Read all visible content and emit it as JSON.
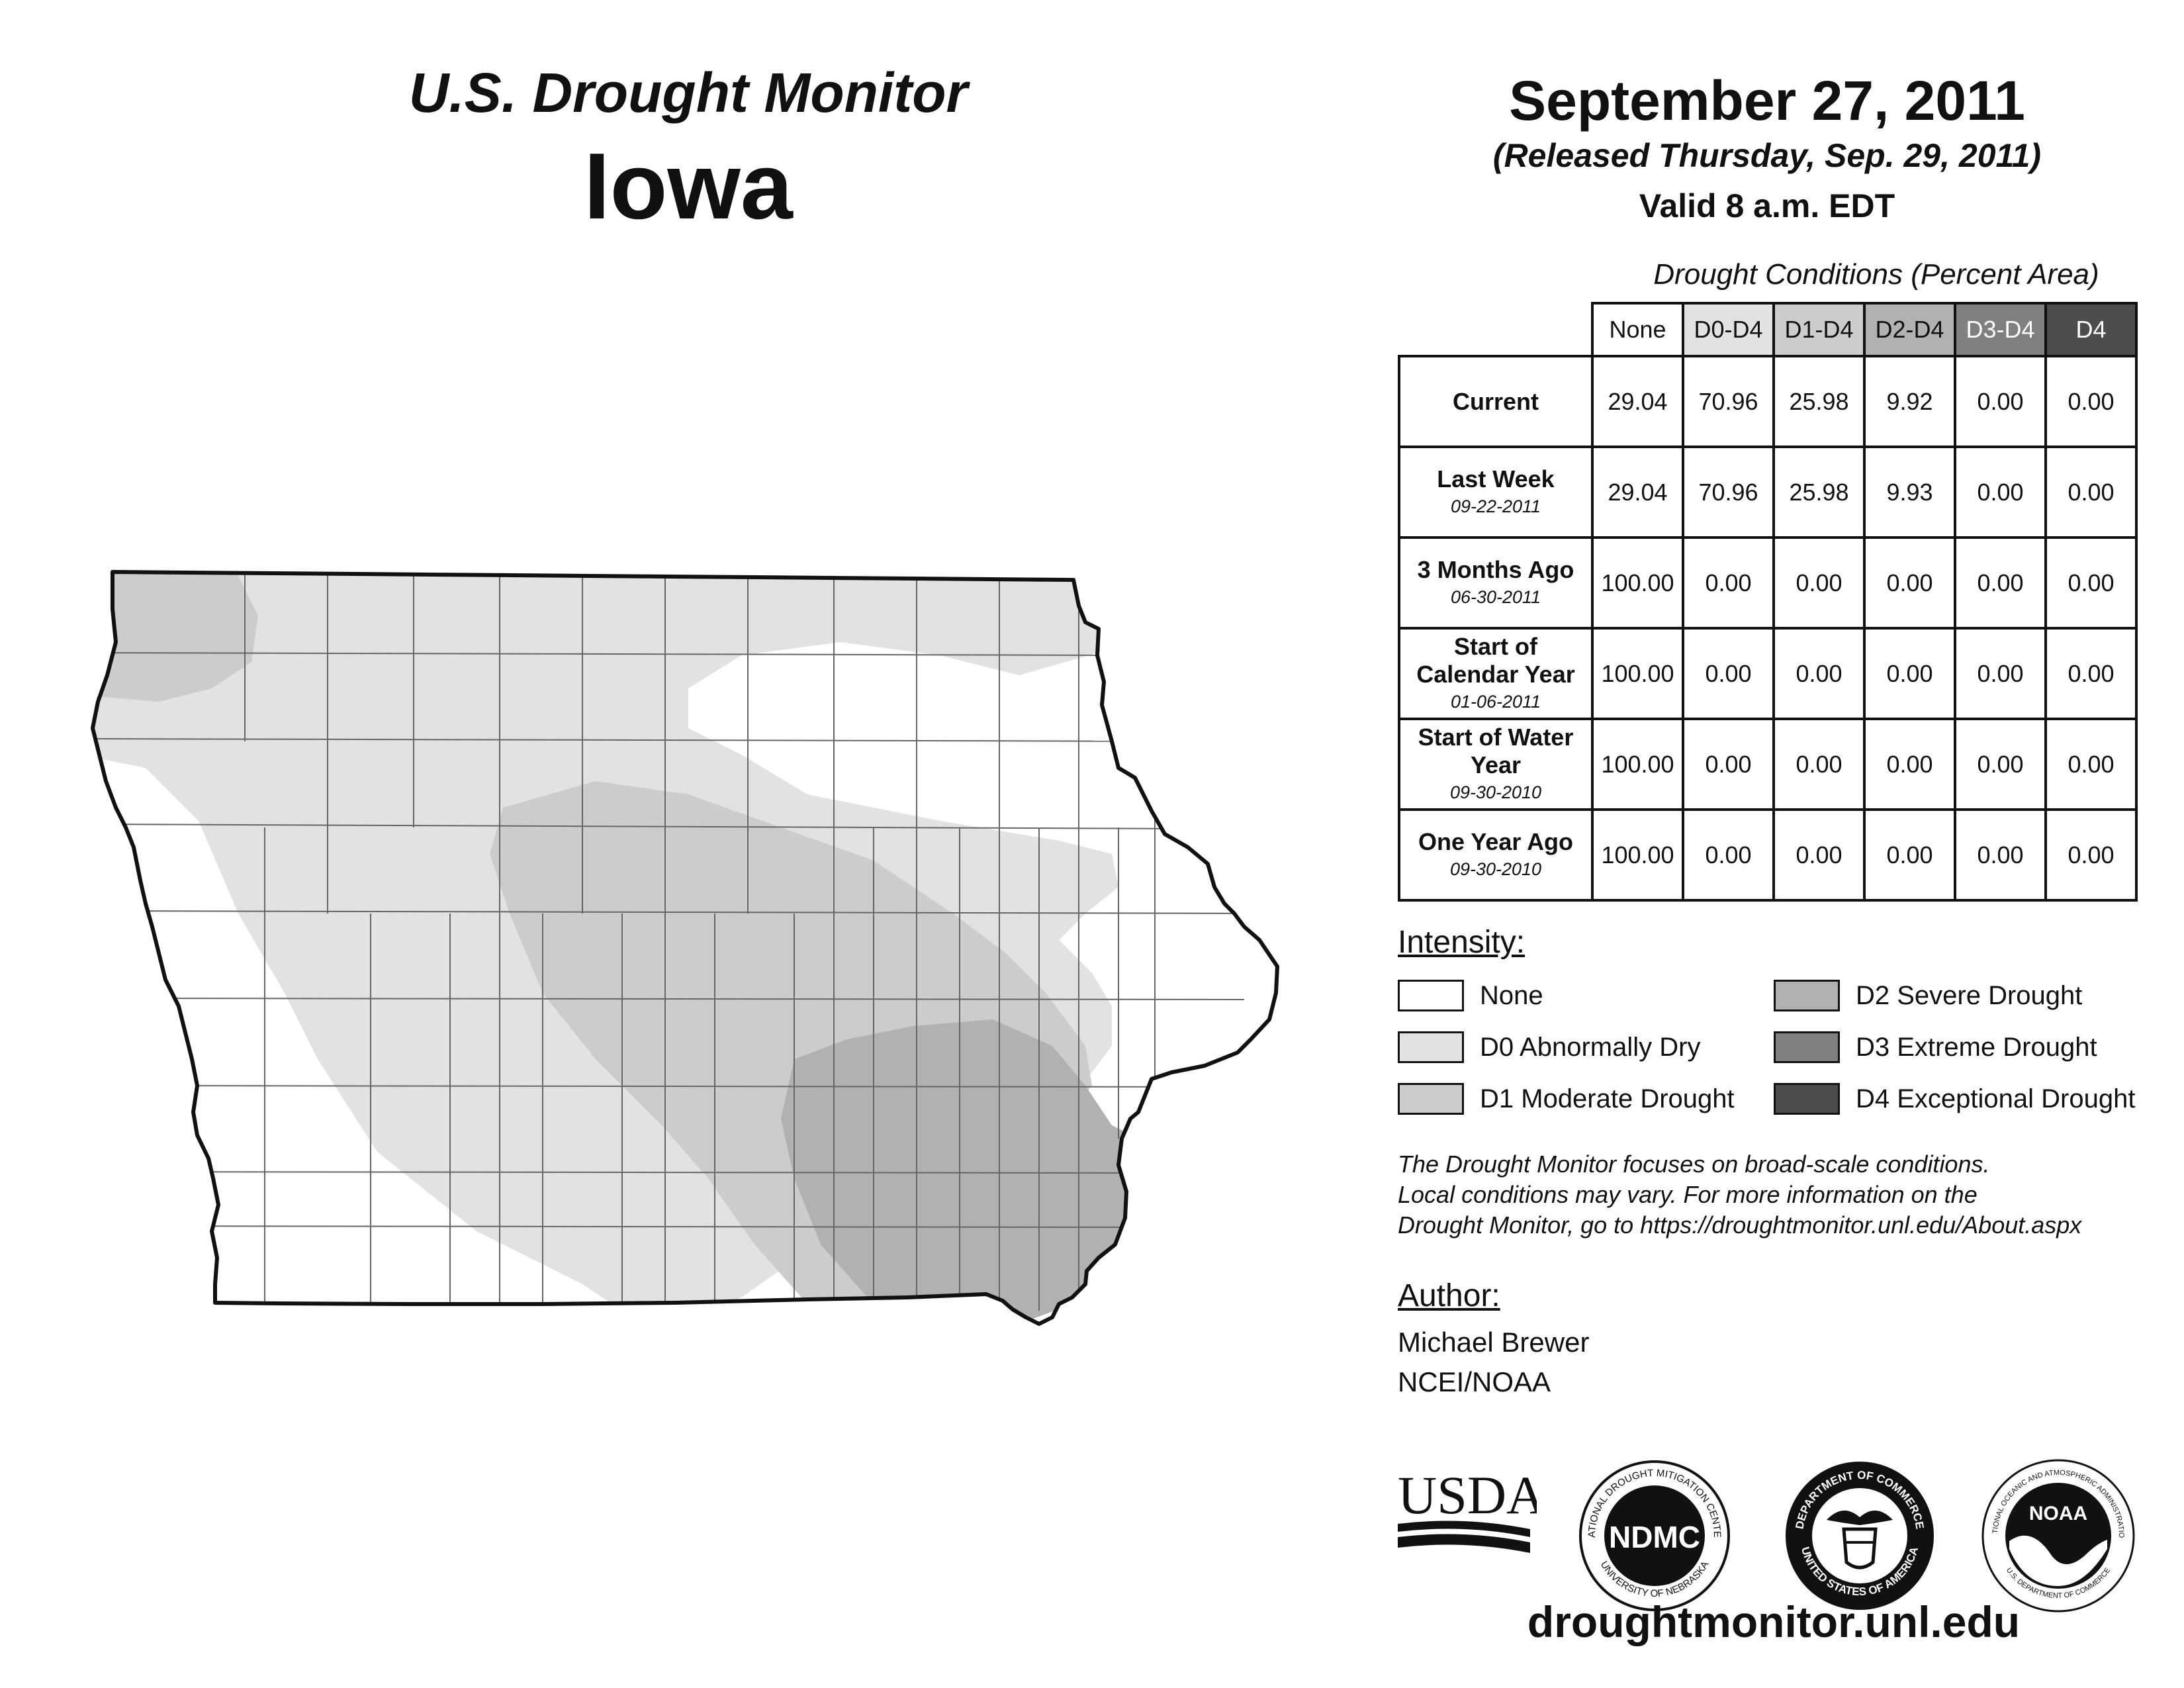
{
  "header": {
    "title": "U.S. Drought Monitor",
    "state": "Iowa",
    "date": "September 27, 2011",
    "released": "(Released Thursday, Sep. 29, 2011)",
    "valid": "Valid 8 a.m. EDT"
  },
  "table": {
    "caption": "Drought Conditions (Percent Area)",
    "columns": [
      "None",
      "D0-D4",
      "D1-D4",
      "D2-D4",
      "D3-D4",
      "D4"
    ],
    "rows": [
      {
        "label": "Current",
        "date": "",
        "values": [
          "29.04",
          "70.96",
          "25.98",
          "9.92",
          "0.00",
          "0.00"
        ]
      },
      {
        "label": "Last Week",
        "date": "09-22-2011",
        "values": [
          "29.04",
          "70.96",
          "25.98",
          "9.93",
          "0.00",
          "0.00"
        ]
      },
      {
        "label": "3 Months Ago",
        "date": "06-30-2011",
        "values": [
          "100.00",
          "0.00",
          "0.00",
          "0.00",
          "0.00",
          "0.00"
        ]
      },
      {
        "label": "Start of Calendar Year",
        "date": "01-06-2011",
        "values": [
          "100.00",
          "0.00",
          "0.00",
          "0.00",
          "0.00",
          "0.00"
        ]
      },
      {
        "label": "Start of Water Year",
        "date": "09-30-2010",
        "values": [
          "100.00",
          "0.00",
          "0.00",
          "0.00",
          "0.00",
          "0.00"
        ]
      },
      {
        "label": "One Year Ago",
        "date": "09-30-2010",
        "values": [
          "100.00",
          "0.00",
          "0.00",
          "0.00",
          "0.00",
          "0.00"
        ]
      }
    ]
  },
  "legend": {
    "heading": "Intensity:",
    "items": [
      {
        "label": "None",
        "color": "#ffffff"
      },
      {
        "label": "D0 Abnormally Dry",
        "color": "#e2e2e2"
      },
      {
        "label": "D1 Moderate Drought",
        "color": "#cccccc"
      },
      {
        "label": "D2 Severe Drought",
        "color": "#b1b1b1"
      },
      {
        "label": "D3 Extreme Drought",
        "color": "#808080"
      },
      {
        "label": "D4 Exceptional Drought",
        "color": "#4d4d4d"
      }
    ]
  },
  "disclaimer": {
    "line1": "The Drought Monitor focuses on broad-scale conditions.",
    "line2": "Local conditions may vary. For more information on the",
    "line3": "Drought Monitor, go to https://droughtmonitor.unl.edu/About.aspx"
  },
  "author": {
    "heading": "Author:",
    "name": "Michael Brewer",
    "org": "NCEI/NOAA"
  },
  "logos": {
    "usda": "USDA",
    "ndmc": "NDMC",
    "ndmc_ring_top": "NATIONAL DROUGHT MITIGATION CENTER",
    "ndmc_ring_bottom": "UNIVERSITY OF NEBRASKA",
    "doc_ring_top": "DEPARTMENT OF COMMERCE",
    "doc_ring_bottom": "UNITED STATES OF AMERICA",
    "noaa": "NOAA",
    "noaa_ring_top": "NATIONAL OCEANIC AND ATMOSPHERIC ADMINISTRATION",
    "noaa_ring_bottom": "U.S. DEPARTMENT OF COMMERCE"
  },
  "website": "droughtmonitor.unl.edu",
  "colors": {
    "none": "#ffffff",
    "d0": "#e2e2e2",
    "d1": "#cccccc",
    "d2": "#b1b1b1",
    "d3": "#808080",
    "d4": "#4d4d4d",
    "outline": "#111111"
  }
}
